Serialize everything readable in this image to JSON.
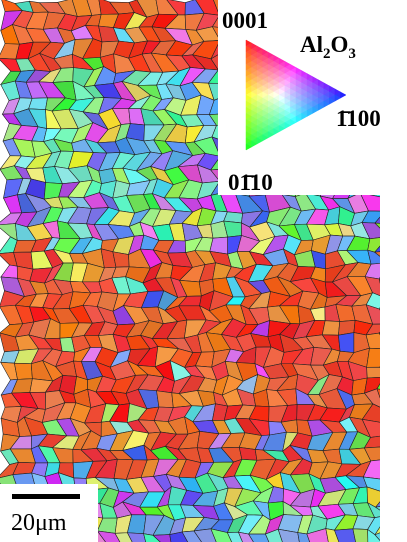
{
  "legend": {
    "top_label": "0001",
    "right_label": "1̄100",
    "bottom_label": "01̄10",
    "compound": {
      "element1": "Al",
      "count1": "2",
      "element2": "O",
      "count2": "3"
    }
  },
  "scale_bar": {
    "label": "20μm"
  }
}
